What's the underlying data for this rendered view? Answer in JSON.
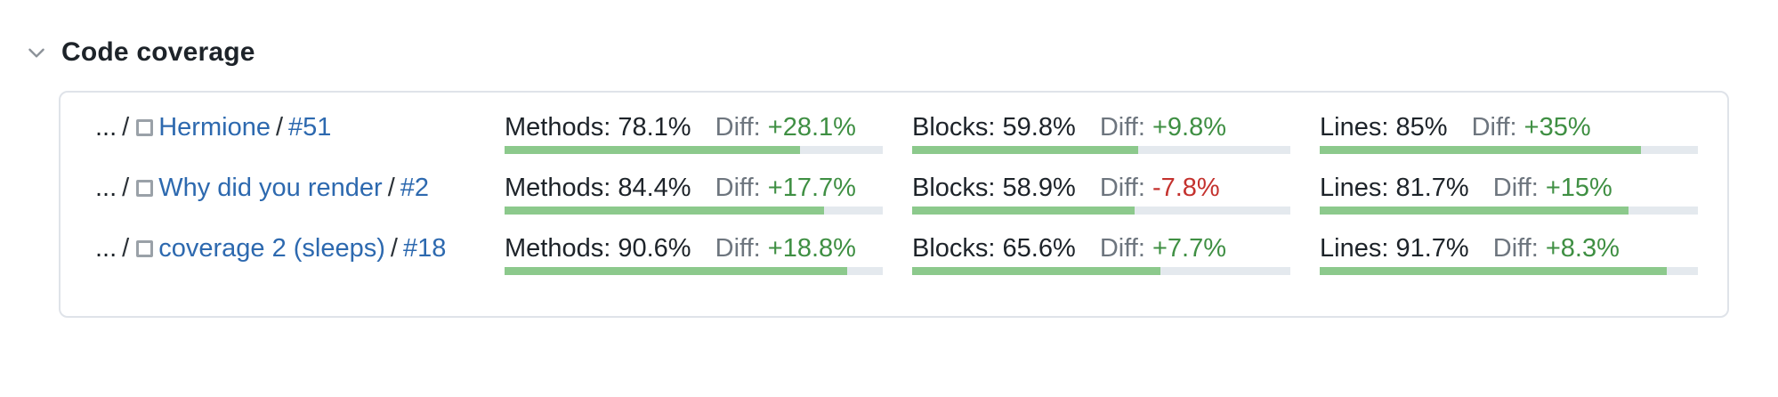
{
  "header": {
    "title": "Code coverage"
  },
  "colors": {
    "bar_fill": "#8cc98c",
    "bar_track": "#e4e9ee",
    "diff_positive": "#3f8f43",
    "diff_negative": "#c4322e",
    "link": "#2d69af",
    "card_border": "#dfe3e9"
  },
  "card": {
    "rows": [
      {
        "breadcrumb": {
          "ellipsis": "...",
          "sep1": "/",
          "name": "Hermione",
          "sep2": "/",
          "build": "#51"
        },
        "metrics": [
          {
            "label": "Methods:",
            "value": "78.1%",
            "percent": 78.1,
            "diff_label": "Diff:",
            "diff_value": "+28.1%",
            "trend": "positive"
          },
          {
            "label": "Blocks:",
            "value": "59.8%",
            "percent": 59.8,
            "diff_label": "Diff:",
            "diff_value": "+9.8%",
            "trend": "positive"
          },
          {
            "label": "Lines:",
            "value": "85%",
            "percent": 85,
            "diff_label": "Diff:",
            "diff_value": "+35%",
            "trend": "positive"
          }
        ]
      },
      {
        "breadcrumb": {
          "ellipsis": "...",
          "sep1": "/",
          "name": "Why did you render",
          "sep2": "/",
          "build": "#2"
        },
        "metrics": [
          {
            "label": "Methods:",
            "value": "84.4%",
            "percent": 84.4,
            "diff_label": "Diff:",
            "diff_value": "+17.7%",
            "trend": "positive"
          },
          {
            "label": "Blocks:",
            "value": "58.9%",
            "percent": 58.9,
            "diff_label": "Diff:",
            "diff_value": "-7.8%",
            "trend": "negative"
          },
          {
            "label": "Lines:",
            "value": "81.7%",
            "percent": 81.7,
            "diff_label": "Diff:",
            "diff_value": "+15%",
            "trend": "positive"
          }
        ]
      },
      {
        "breadcrumb": {
          "ellipsis": "...",
          "sep1": "/",
          "name": "coverage 2 (sleeps)",
          "sep2": "/",
          "build": "#18"
        },
        "metrics": [
          {
            "label": "Methods:",
            "value": "90.6%",
            "percent": 90.6,
            "diff_label": "Diff:",
            "diff_value": "+18.8%",
            "trend": "positive"
          },
          {
            "label": "Blocks:",
            "value": "65.6%",
            "percent": 65.6,
            "diff_label": "Diff:",
            "diff_value": "+7.7%",
            "trend": "positive"
          },
          {
            "label": "Lines:",
            "value": "91.7%",
            "percent": 91.7,
            "diff_label": "Diff:",
            "diff_value": "+8.3%",
            "trend": "positive"
          }
        ]
      }
    ]
  }
}
